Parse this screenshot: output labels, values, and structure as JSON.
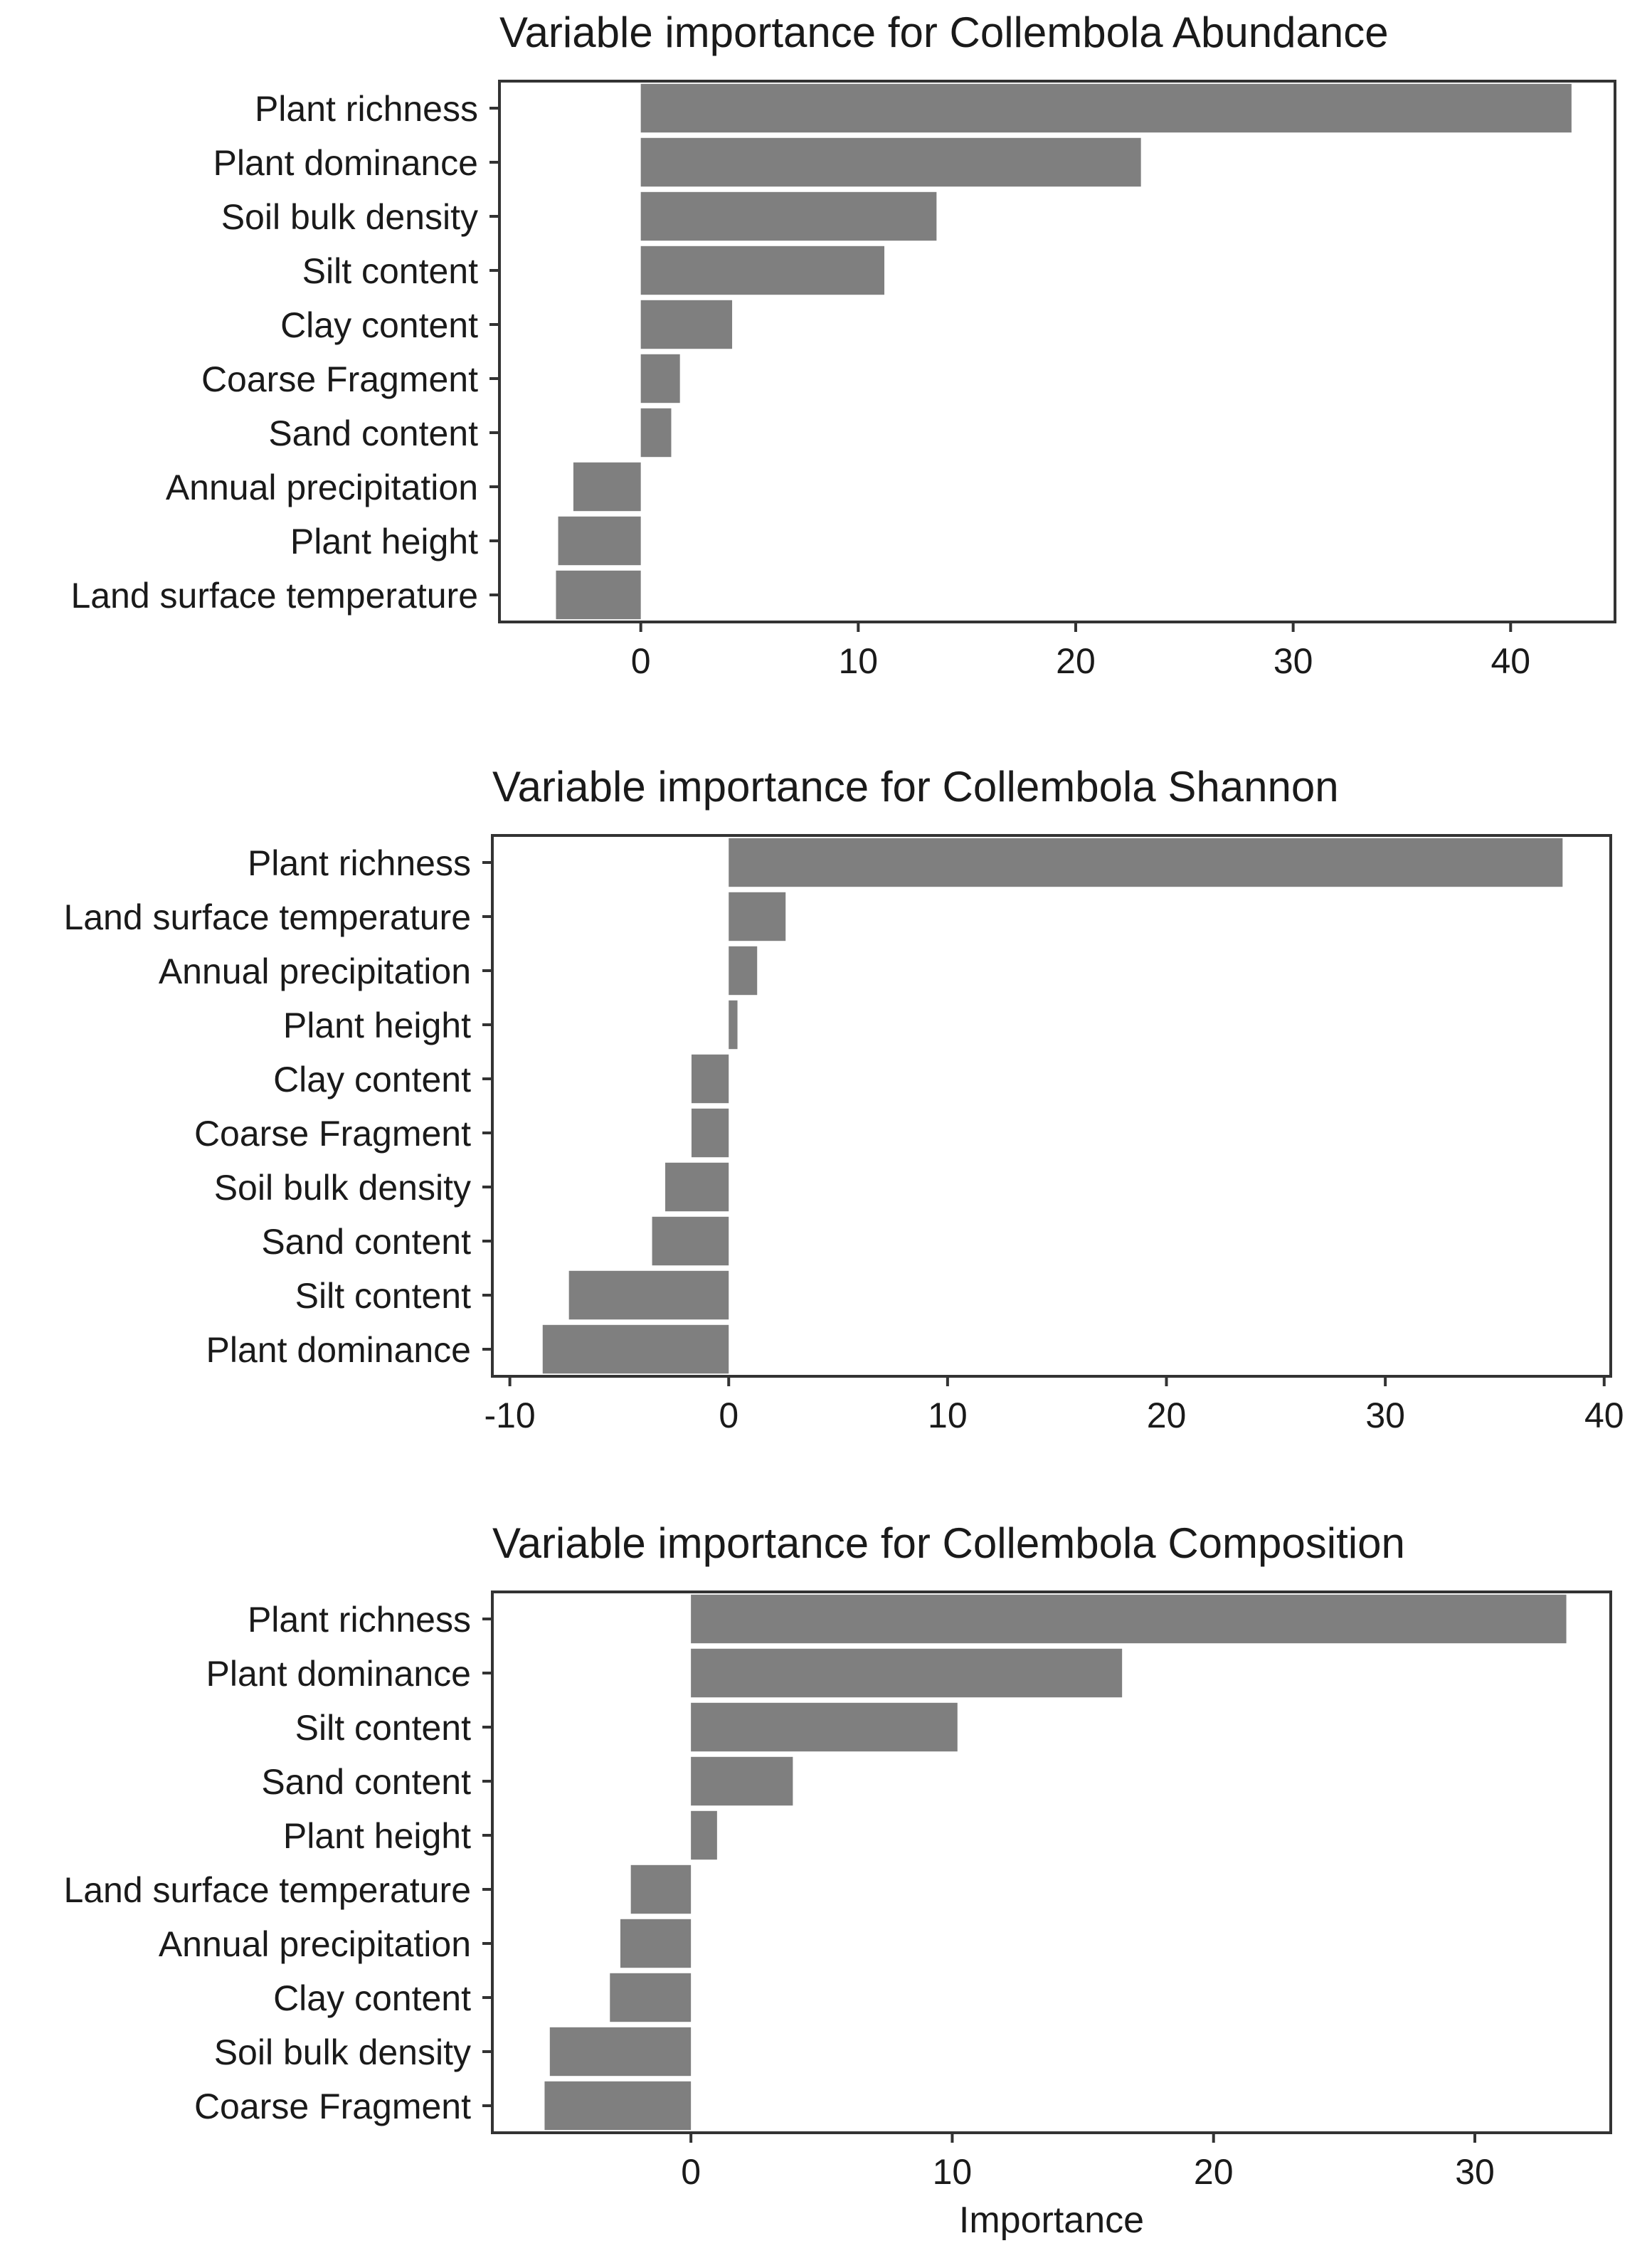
{
  "colors": {
    "bar": "#7f7f7f",
    "axis": "#333333",
    "text": "#1a1a1a",
    "background": "#ffffff"
  },
  "chart_data": [
    {
      "type": "bar",
      "orientation": "horizontal",
      "title": "Variable importance for Collembola Abundance",
      "xlabel": "",
      "xlim": [
        -6.5,
        44.8
      ],
      "xticks": [
        0,
        10,
        20,
        30,
        40
      ],
      "xtick_labels": [
        "0",
        "10",
        "20",
        "30",
        "40"
      ],
      "categories": [
        "Plant richness",
        "Plant dominance",
        "Soil bulk density",
        "Silt content",
        "Clay content",
        "Coarse Fragment",
        "Sand content",
        "Annual precipitation",
        "Plant height",
        "Land surface temperature"
      ],
      "values": [
        42.8,
        23.0,
        13.6,
        11.2,
        4.2,
        1.8,
        1.4,
        -3.1,
        -3.8,
        -3.9
      ]
    },
    {
      "type": "bar",
      "orientation": "horizontal",
      "title": "Variable importance for Collembola Shannon",
      "xlabel": "",
      "xlim": [
        -10.8,
        40.3
      ],
      "xticks": [
        -10,
        0,
        10,
        20,
        30,
        40
      ],
      "xtick_labels": [
        "-10",
        "0",
        "10",
        "20",
        "30",
        "40"
      ],
      "categories": [
        "Plant richness",
        "Land surface temperature",
        "Annual precipitation",
        "Plant height",
        "Clay content",
        "Coarse Fragment",
        "Soil bulk density",
        "Sand content",
        "Silt content",
        "Plant dominance"
      ],
      "values": [
        38.1,
        2.6,
        1.3,
        0.4,
        -1.7,
        -1.7,
        -2.9,
        -3.5,
        -7.3,
        -8.5
      ]
    },
    {
      "type": "bar",
      "orientation": "horizontal",
      "title": "Variable importance for Collembola Composition",
      "xlabel": "Importance",
      "xlim": [
        -7.6,
        35.2
      ],
      "xticks": [
        0,
        10,
        20,
        30
      ],
      "xtick_labels": [
        "0",
        "10",
        "20",
        "30"
      ],
      "categories": [
        "Plant richness",
        "Plant dominance",
        "Silt content",
        "Sand content",
        "Plant height",
        "Land surface temperature",
        "Annual precipitation",
        "Clay content",
        "Soil bulk density",
        "Coarse Fragment"
      ],
      "values": [
        33.5,
        16.5,
        10.2,
        3.9,
        1.0,
        -2.3,
        -2.7,
        -3.1,
        -5.4,
        -5.6
      ]
    }
  ]
}
